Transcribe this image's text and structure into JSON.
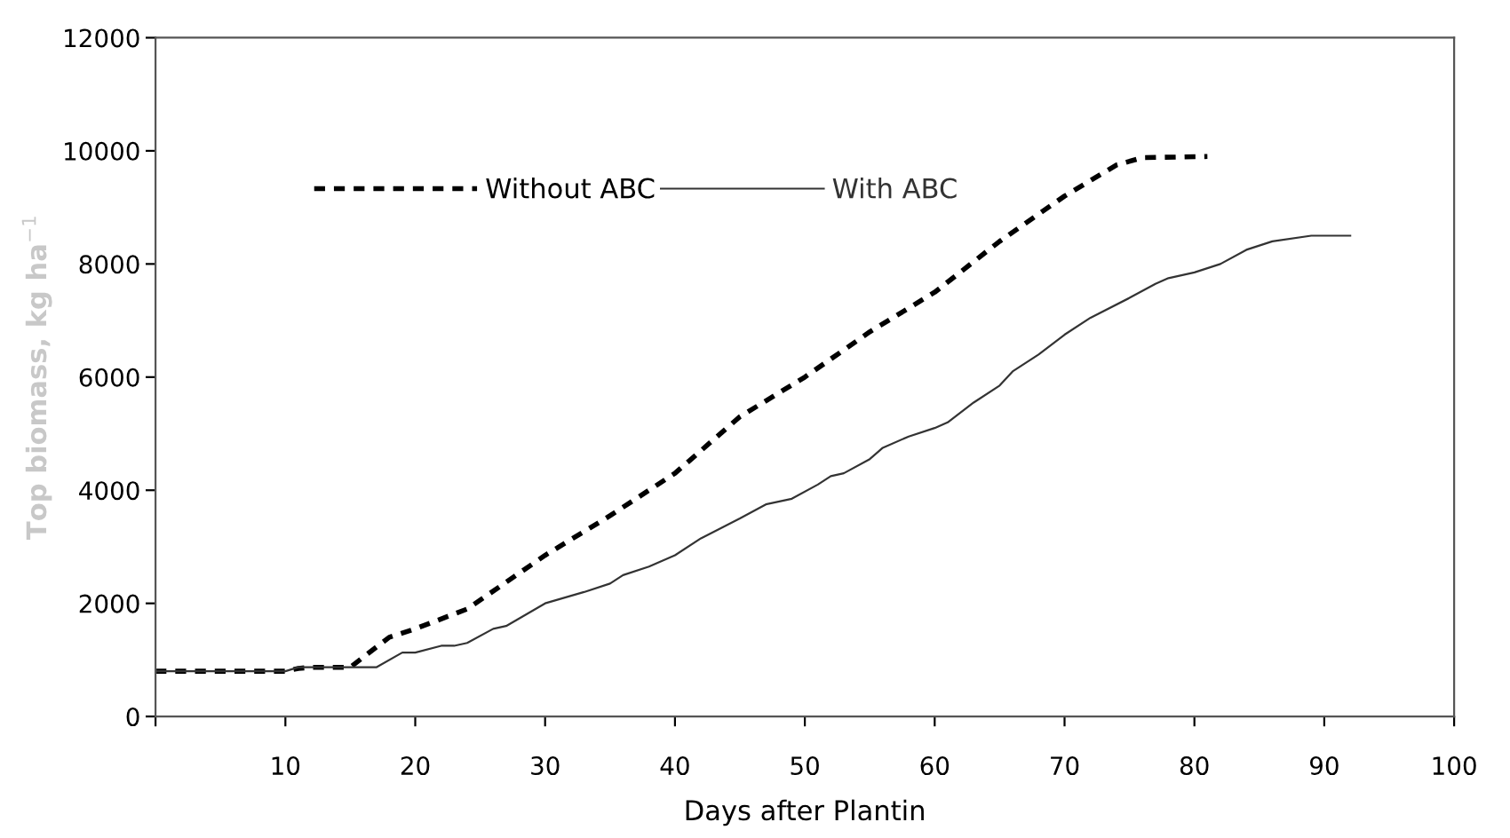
{
  "chart_data": {
    "type": "line",
    "xlabel": "Days after Plantin",
    "ylabel": "Top biomass, kg ha$^{−1}$",
    "xlim": [
      0,
      100
    ],
    "xticks": [
      {
        "value": 0,
        "label": null
      },
      10,
      20,
      30,
      40,
      50,
      60,
      70,
      80,
      90,
      100
    ],
    "ylim": [
      0,
      12000
    ],
    "yticks": [
      0,
      2000,
      4000,
      6000,
      8000,
      10000,
      12000
    ],
    "grid": false,
    "legend": "top",
    "marker": "none",
    "series": [
      {
        "name": "Without ABC",
        "color": "#000000",
        "line_style": "dashed",
        "x": [
          0,
          10,
          11,
          12,
          15,
          16,
          18,
          20,
          24,
          30,
          35,
          40,
          45,
          50,
          55,
          60,
          65,
          70,
          74,
          76,
          81
        ],
        "values": [
          800,
          800,
          850,
          870,
          870,
          1050,
          1400,
          1550,
          1900,
          2850,
          3550,
          4300,
          5300,
          6000,
          6800,
          7500,
          8400,
          9200,
          9750,
          9880,
          9900
        ]
      },
      {
        "name": "With ABC",
        "color": "#333333",
        "line_style": "solid",
        "x": [
          0,
          10,
          11,
          17,
          19,
          20,
          22,
          23,
          24,
          26,
          27,
          30,
          33,
          35,
          36,
          38,
          40,
          42,
          45,
          47,
          49,
          51,
          52,
          53,
          55,
          56,
          58,
          60,
          61,
          63,
          65,
          66,
          68,
          70,
          72,
          75,
          77,
          78,
          80,
          82,
          84,
          86,
          89,
          92
        ],
        "values": [
          800,
          800,
          870,
          870,
          1130,
          1130,
          1250,
          1250,
          1300,
          1550,
          1600,
          2000,
          2200,
          2350,
          2500,
          2650,
          2850,
          3150,
          3500,
          3750,
          3850,
          4100,
          4250,
          4300,
          4550,
          4750,
          4950,
          5100,
          5200,
          5550,
          5850,
          6100,
          6400,
          6750,
          7050,
          7400,
          7650,
          7750,
          7850,
          8000,
          8250,
          8400,
          8500,
          8500
        ]
      }
    ]
  }
}
